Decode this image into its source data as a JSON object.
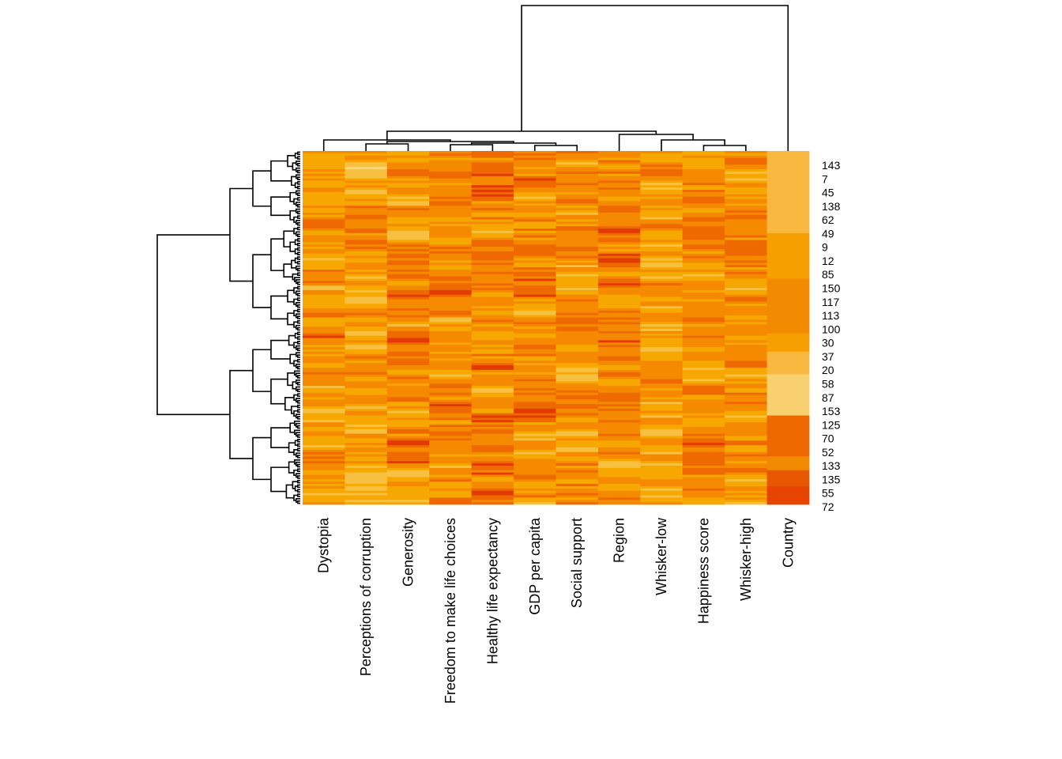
{
  "chart_data": {
    "type": "heatmap",
    "title": "",
    "xlabel": "",
    "ylabel": "",
    "palette": [
      "#cc0000",
      "#e23a00",
      "#ee6a00",
      "#f58a00",
      "#f7a800",
      "#f8c040",
      "#f9d880",
      "#fff0b8"
    ],
    "columns": [
      "Dystopia",
      "Perceptions of corruption",
      "Generosity",
      "Freedom to make life choices",
      "Healthy life expectancy",
      "GDP per capita",
      "Social support",
      "Region",
      "Whisker-low",
      "Happiness score",
      "Whisker-high",
      "Country"
    ],
    "row_count": 155,
    "row_labels_shown": [
      "143",
      "7",
      "45",
      "138",
      "62",
      "49",
      "9",
      "12",
      "85",
      "150",
      "117",
      "113",
      "100",
      "30",
      "37",
      "20",
      "58",
      "87",
      "153",
      "125",
      "70",
      "52",
      "133",
      "135",
      "55",
      "72"
    ],
    "column_dendrogram": true,
    "row_dendrogram": true,
    "country_blocks": [
      {
        "rows": 13,
        "color": "#f8b840"
      },
      {
        "rows": 23,
        "color": "#f8b840"
      },
      {
        "rows": 20,
        "color": "#f5a000"
      },
      {
        "rows": 11,
        "color": "#f28a00"
      },
      {
        "rows": 13,
        "color": "#f28a00"
      },
      {
        "rows": 8,
        "color": "#f5a000"
      },
      {
        "rows": 10,
        "color": "#f8b840"
      },
      {
        "rows": 18,
        "color": "#f8d070"
      },
      {
        "rows": 18,
        "color": "#ee6a00"
      },
      {
        "rows": 6,
        "color": "#f28a00"
      },
      {
        "rows": 7,
        "color": "#e85800"
      },
      {
        "rows": 8,
        "color": "#e64400"
      }
    ]
  }
}
